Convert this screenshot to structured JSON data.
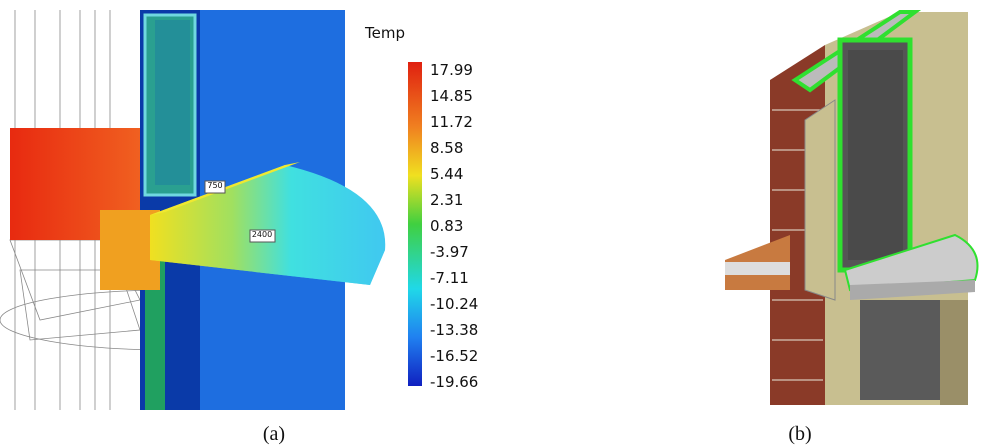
{
  "figure_a": {
    "legend_title": "Temp",
    "legend_labels": [
      "17.99",
      "14.85",
      "11.72",
      "8.58",
      "5.44",
      "2.31",
      "0.83",
      "-3.97",
      "-7.11",
      "-10.24",
      "-13.38",
      "-16.52",
      "-19.66"
    ],
    "dimensions": [
      "750",
      "2400"
    ],
    "caption": "(a)"
  },
  "figure_b": {
    "caption": "(b)"
  }
}
